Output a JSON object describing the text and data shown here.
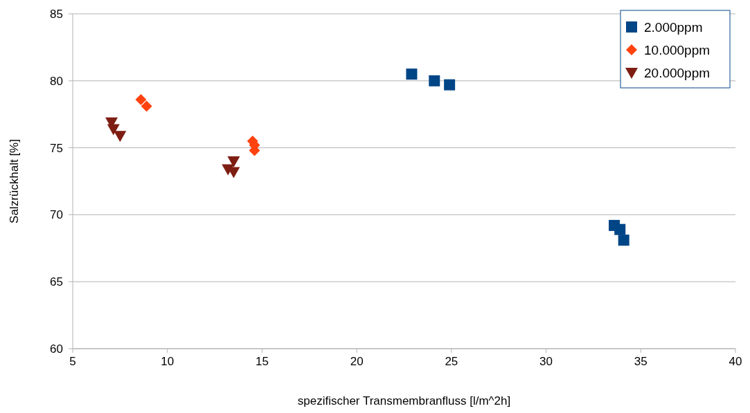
{
  "chart_data": {
    "type": "scatter",
    "xlabel": "spezifischer Transmembranfluss [l/m^2h]",
    "ylabel": "Salzrückhalt [%]",
    "xlim": [
      5,
      40
    ],
    "xticks": [
      5,
      10,
      15,
      20,
      25,
      30,
      35,
      40
    ],
    "ylim": [
      60,
      85
    ],
    "yticks": [
      60,
      65,
      70,
      75,
      80,
      85
    ],
    "grid": "y",
    "legend": "top right",
    "series": [
      {
        "name": "2.000ppm",
        "color": "#004586",
        "marker": "square",
        "x": [
          22.9,
          24.1,
          24.9,
          33.6,
          33.9,
          34.1
        ],
        "values": [
          80.5,
          80.0,
          79.7,
          69.2,
          68.9,
          68.1
        ]
      },
      {
        "name": "10.000ppm",
        "color": "#ff420e",
        "marker": "diamond",
        "x": [
          8.6,
          8.9,
          14.5,
          14.6,
          14.6
        ],
        "values": [
          78.6,
          78.1,
          75.5,
          75.2,
          74.8
        ]
      },
      {
        "name": "20.000ppm",
        "color": "#7e1e12",
        "marker": "triangle",
        "x": [
          7.05,
          7.15,
          7.5,
          13.5,
          13.2,
          13.5
        ],
        "values": [
          76.9,
          76.4,
          75.9,
          74.0,
          73.4,
          73.2
        ]
      }
    ]
  }
}
